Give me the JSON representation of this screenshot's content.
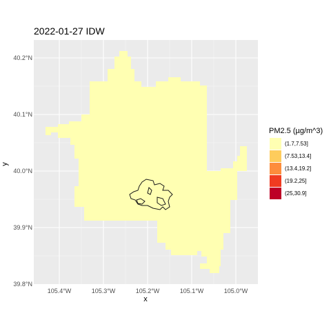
{
  "title": "2022-01-27 IDW",
  "axes": {
    "xlabel": "x",
    "ylabel": "y",
    "x_ticks": [
      "105.4°W",
      "105.3°W",
      "105.2°W",
      "105.1°W",
      "105.0°W"
    ],
    "y_ticks": [
      "40.2°N",
      "40.1°N",
      "40.0°N",
      "39.9°N",
      "39.8°N"
    ]
  },
  "legend": {
    "title": "PM2.5 (µg/m^3)",
    "items": [
      {
        "label": "(1.7,7.53]",
        "color": "#ffffb2"
      },
      {
        "label": "(7.53,13.4]",
        "color": "#fecc5c"
      },
      {
        "label": "(13.4,19.2]",
        "color": "#fd8d3c"
      },
      {
        "label": "(19.2,25]",
        "color": "#f03b20"
      },
      {
        "label": "(25,30.9]",
        "color": "#bd0026"
      }
    ]
  },
  "colors": {
    "panel_background": "#ebebeb",
    "grid": "#ffffff",
    "raster_fill": "#ffffb2",
    "boundary_line": "#1a1a1a"
  },
  "chart_data": {
    "type": "heatmap",
    "title": "2022-01-27 IDW",
    "xlabel": "x",
    "ylabel": "y",
    "x_range_deg": [
      -105.45,
      -104.95
    ],
    "y_range_deg": [
      39.8,
      40.22
    ],
    "values_class": "(1.7,7.53]",
    "legend_position": "right",
    "grid": true
  }
}
